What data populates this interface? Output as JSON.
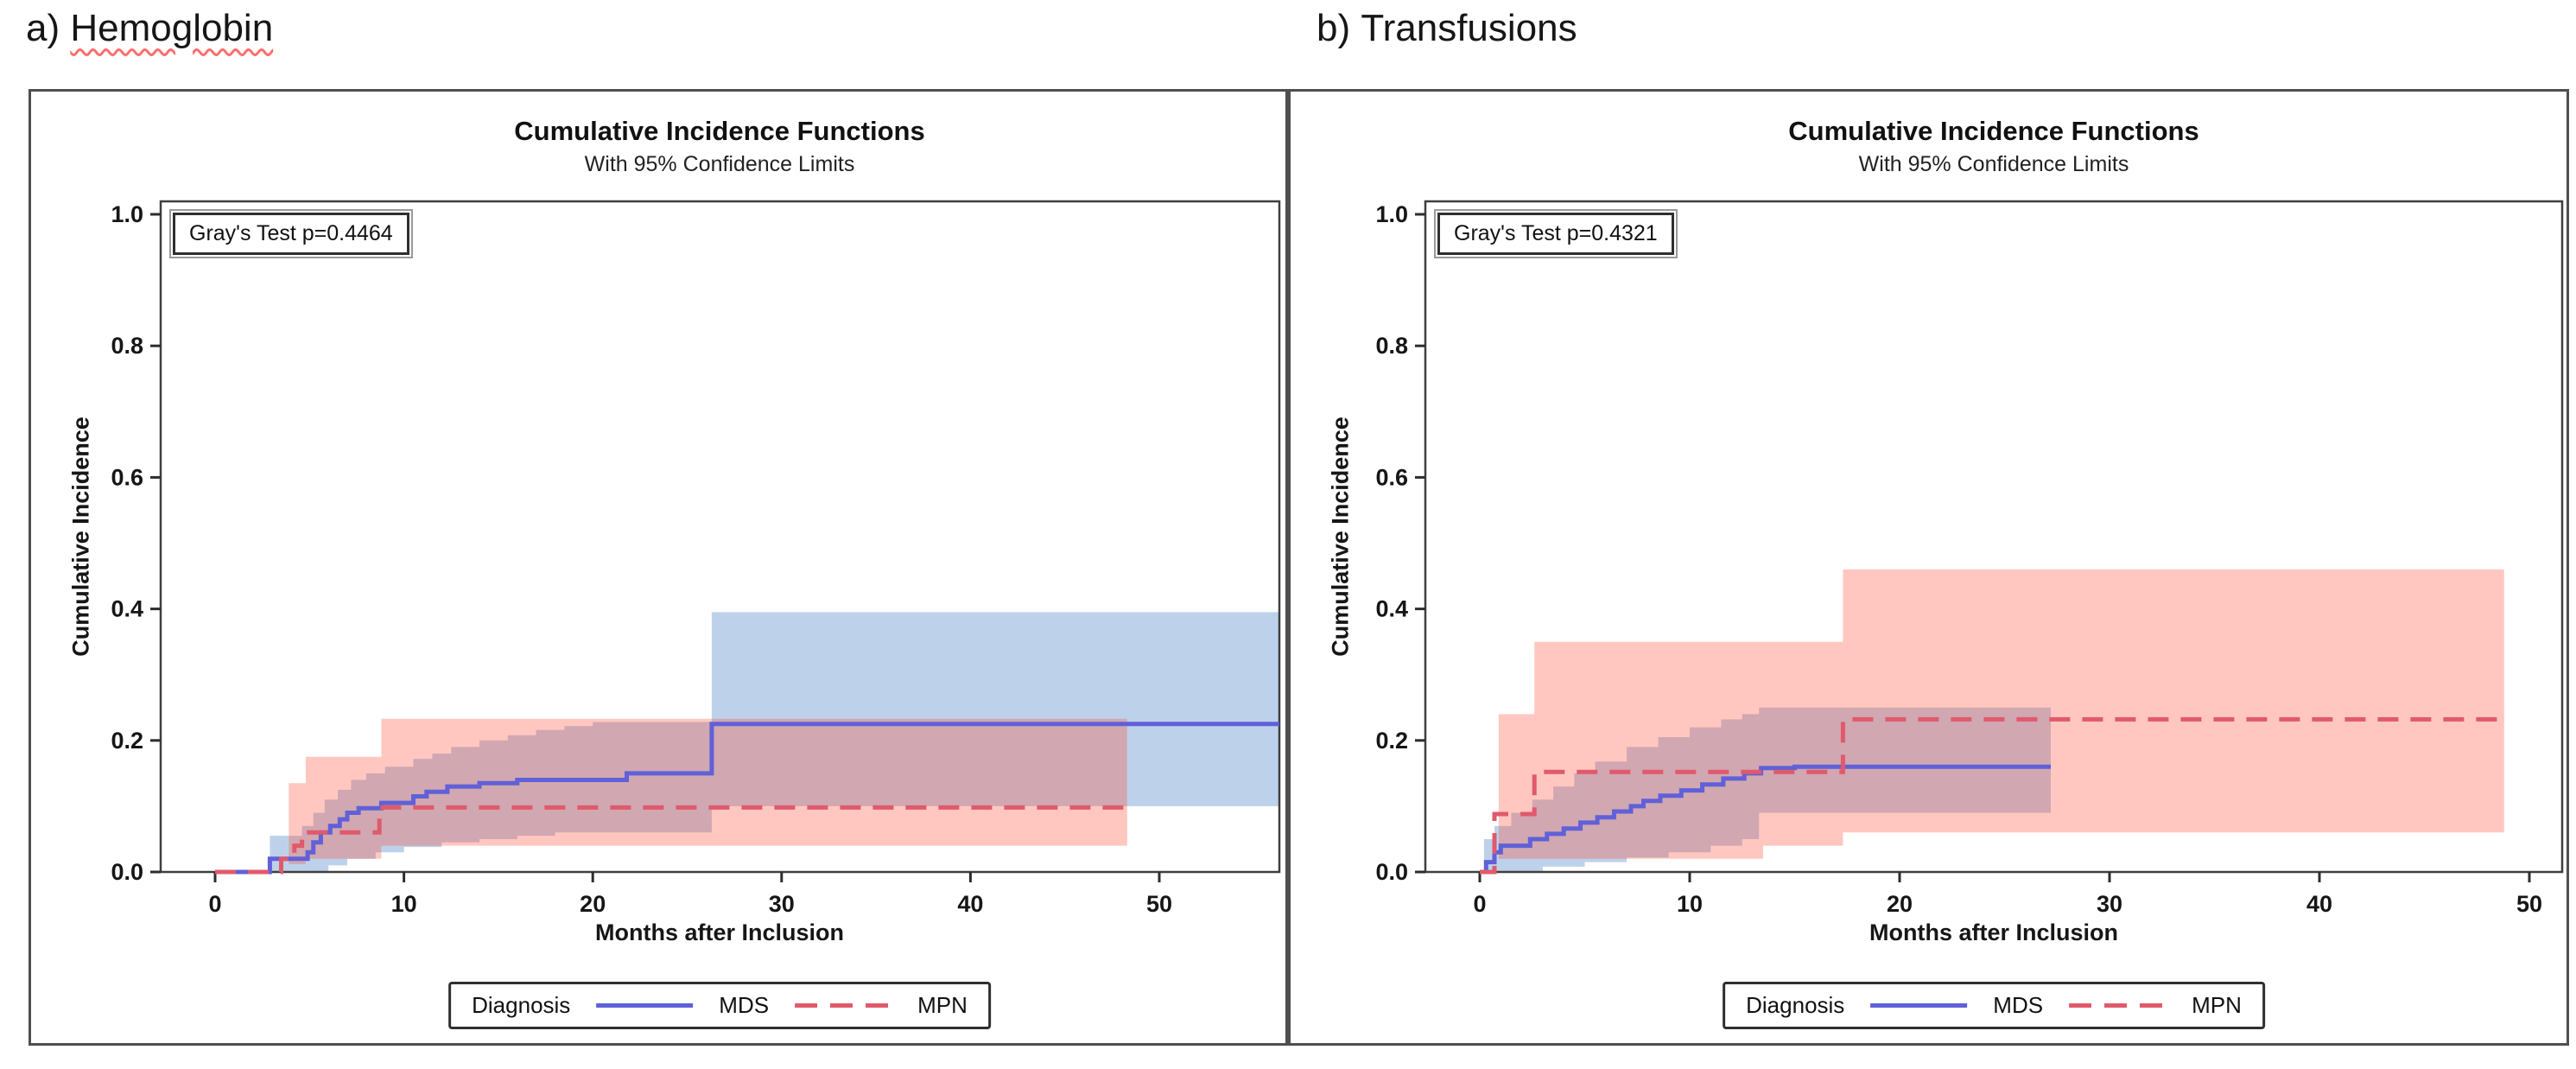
{
  "headers": [
    {
      "prefix": "a)",
      "word": "Hemoglobin",
      "underline": "red-wavy"
    },
    {
      "prefix": "b)",
      "word": "Transfusions",
      "underline": "none"
    }
  ],
  "colors": {
    "mds_line": "#6060d8",
    "mpn_line": "#e05a6c",
    "mds_band": "#bdd2ea",
    "mpn_band": "rgba(255,70,45,0.30)",
    "plot_border": "#3f3f3f",
    "panel_border": "#4f4f4f",
    "tick": "#2d2d2d"
  },
  "chart_data": [
    {
      "type": "line",
      "variant": "cumulative-incidence-step-with-ci-bands",
      "title": "Cumulative Incidence Functions",
      "subtitle": "With 95% Confidence Limits",
      "annotation": "Gray's Test p=0.4464",
      "xlabel": "Months after Inclusion",
      "ylabel": "Cumulative Incidence",
      "xlim": [
        0,
        56.5
      ],
      "ylim": [
        0,
        1.0
      ],
      "x_ticks": [
        0,
        10,
        20,
        30,
        40,
        50
      ],
      "y_ticks": [
        "0.0",
        "0.2",
        "0.4",
        "0.6",
        "0.8",
        "1.0"
      ],
      "grid": false,
      "legend": {
        "title": "Diagnosis",
        "position": "bottom",
        "entries": [
          {
            "label": "MDS",
            "line": "solid"
          },
          {
            "label": "MPN",
            "line": "dashed"
          }
        ]
      },
      "series": [
        {
          "name": "MDS",
          "style": "solid",
          "points": [
            [
              0,
              0
            ],
            [
              2.9,
              0.02
            ],
            [
              4.9,
              0.03
            ],
            [
              5.2,
              0.045
            ],
            [
              5.6,
              0.06
            ],
            [
              6.1,
              0.07
            ],
            [
              6.6,
              0.08
            ],
            [
              7.0,
              0.09
            ],
            [
              7.6,
              0.097
            ],
            [
              8.8,
              0.105
            ],
            [
              10.5,
              0.115
            ],
            [
              11.2,
              0.122
            ],
            [
              12.3,
              0.13
            ],
            [
              14.0,
              0.135
            ],
            [
              16.0,
              0.14
            ],
            [
              21.8,
              0.15
            ],
            [
              26.3,
              0.225
            ],
            [
              56.35,
              0.225
            ]
          ]
        },
        {
          "name": "MPN",
          "style": "dashed",
          "points": [
            [
              0,
              0
            ],
            [
              3.5,
              0.02
            ],
            [
              4.2,
              0.04
            ],
            [
              4.6,
              0.06
            ],
            [
              8.7,
              0.098
            ],
            [
              48.3,
              0.098
            ]
          ]
        }
      ],
      "bands": [
        {
          "name": "MDS 95% CI",
          "color_key": "mds_band",
          "upper": [
            [
              2.9,
              0.055
            ],
            [
              4.6,
              0.07
            ],
            [
              5.2,
              0.09
            ],
            [
              5.8,
              0.11
            ],
            [
              6.5,
              0.125
            ],
            [
              7.2,
              0.14
            ],
            [
              8.0,
              0.15
            ],
            [
              9.0,
              0.16
            ],
            [
              10.5,
              0.172
            ],
            [
              11.5,
              0.18
            ],
            [
              12.5,
              0.19
            ],
            [
              14.0,
              0.2
            ],
            [
              15.5,
              0.208
            ],
            [
              17.0,
              0.216
            ],
            [
              18.5,
              0.222
            ],
            [
              20.0,
              0.228
            ],
            [
              26.3,
              0.395
            ],
            [
              56.35,
              0.395
            ]
          ],
          "lower": [
            [
              2.9,
              0.0
            ],
            [
              6.0,
              0.01
            ],
            [
              7.0,
              0.02
            ],
            [
              8.5,
              0.03
            ],
            [
              10.0,
              0.038
            ],
            [
              12.0,
              0.045
            ],
            [
              14.0,
              0.05
            ],
            [
              16.0,
              0.055
            ],
            [
              18.0,
              0.06
            ],
            [
              26.3,
              0.1
            ],
            [
              56.35,
              0.1
            ]
          ]
        },
        {
          "name": "MPN 95% CI",
          "color_key": "mpn_band",
          "upper": [
            [
              3.9,
              0.135
            ],
            [
              4.8,
              0.175
            ],
            [
              8.8,
              0.233
            ],
            [
              48.3,
              0.233
            ]
          ],
          "lower": [
            [
              3.9,
              0.012
            ],
            [
              4.8,
              0.02
            ],
            [
              8.8,
              0.04
            ],
            [
              48.3,
              0.04
            ]
          ]
        }
      ]
    },
    {
      "type": "line",
      "variant": "cumulative-incidence-step-with-ci-bands",
      "title": "Cumulative Incidence Functions",
      "subtitle": "With 95% Confidence Limits",
      "annotation": "Gray's Test p=0.4321",
      "xlabel": "Months after Inclusion",
      "ylabel": "Cumulative Incidence",
      "xlim": [
        0,
        51.6
      ],
      "ylim": [
        0,
        1.0
      ],
      "x_ticks": [
        0,
        10,
        20,
        30,
        40,
        50
      ],
      "y_ticks": [
        "0.0",
        "0.2",
        "0.4",
        "0.6",
        "0.8",
        "1.0"
      ],
      "grid": false,
      "legend": {
        "title": "Diagnosis",
        "position": "bottom",
        "entries": [
          {
            "label": "MDS",
            "line": "solid"
          },
          {
            "label": "MPN",
            "line": "dashed"
          }
        ]
      },
      "series": [
        {
          "name": "MDS",
          "style": "solid",
          "points": [
            [
              0,
              0
            ],
            [
              0.3,
              0.015
            ],
            [
              0.7,
              0.03
            ],
            [
              1.0,
              0.04
            ],
            [
              2.4,
              0.05
            ],
            [
              3.2,
              0.058
            ],
            [
              4.0,
              0.066
            ],
            [
              4.8,
              0.075
            ],
            [
              5.6,
              0.083
            ],
            [
              6.4,
              0.092
            ],
            [
              7.2,
              0.1
            ],
            [
              7.8,
              0.108
            ],
            [
              8.6,
              0.116
            ],
            [
              9.6,
              0.124
            ],
            [
              10.6,
              0.133
            ],
            [
              11.6,
              0.142
            ],
            [
              12.6,
              0.15
            ],
            [
              13.4,
              0.158
            ],
            [
              15.0,
              0.16
            ],
            [
              27.2,
              0.16
            ]
          ]
        },
        {
          "name": "MPN",
          "style": "dashed",
          "points": [
            [
              0,
              0
            ],
            [
              0.7,
              0.088
            ],
            [
              2.6,
              0.152
            ],
            [
              17.3,
              0.232
            ],
            [
              48.8,
              0.232
            ]
          ]
        }
      ],
      "bands": [
        {
          "name": "MDS 95% CI",
          "color_key": "mds_band",
          "upper": [
            [
              0.2,
              0.05
            ],
            [
              0.7,
              0.07
            ],
            [
              1.5,
              0.09
            ],
            [
              2.5,
              0.11
            ],
            [
              3.5,
              0.13
            ],
            [
              4.5,
              0.15
            ],
            [
              5.5,
              0.168
            ],
            [
              7.0,
              0.19
            ],
            [
              8.5,
              0.205
            ],
            [
              10.0,
              0.22
            ],
            [
              11.5,
              0.232
            ],
            [
              12.5,
              0.24
            ],
            [
              13.3,
              0.25
            ],
            [
              27.2,
              0.25
            ]
          ],
          "lower": [
            [
              0.2,
              0.0
            ],
            [
              3.0,
              0.008
            ],
            [
              5.0,
              0.015
            ],
            [
              7.0,
              0.022
            ],
            [
              9.0,
              0.03
            ],
            [
              11.0,
              0.04
            ],
            [
              12.5,
              0.05
            ],
            [
              13.3,
              0.09
            ],
            [
              27.2,
              0.09
            ]
          ]
        },
        {
          "name": "MPN 95% CI",
          "color_key": "mpn_band",
          "upper": [
            [
              0.9,
              0.24
            ],
            [
              2.6,
              0.35
            ],
            [
              17.3,
              0.46
            ],
            [
              48.8,
              0.46
            ]
          ],
          "lower": [
            [
              0.9,
              0.02
            ],
            [
              13.5,
              0.04
            ],
            [
              17.3,
              0.06
            ],
            [
              48.8,
              0.06
            ]
          ]
        }
      ]
    }
  ]
}
